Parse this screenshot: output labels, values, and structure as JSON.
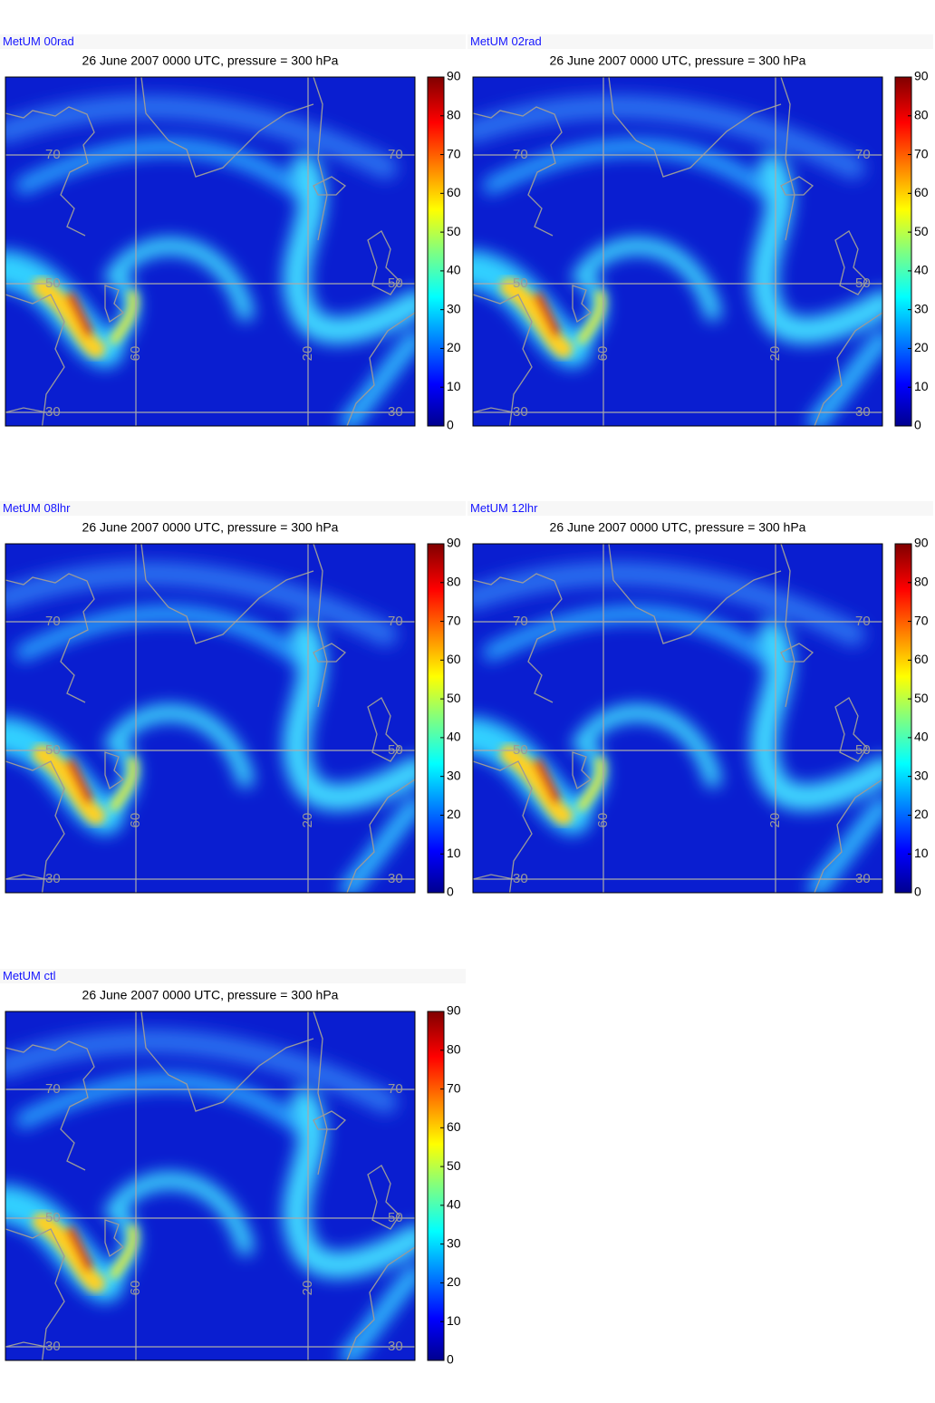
{
  "panels": [
    {
      "label": "MetUM 00rad",
      "title": "26 June 2007 0000 UTC, pressure = 300 hPa",
      "colorbar": {
        "lim": [
          0,
          90
        ],
        "ticks": [
          0,
          10,
          20,
          30,
          40,
          50,
          60,
          70,
          80,
          90
        ]
      },
      "latitudes": [
        70,
        50,
        30
      ],
      "longitudes": [
        60,
        20
      ]
    },
    {
      "label": "MetUM 02rad",
      "title": "26 June 2007 0000 UTC, pressure = 300 hPa",
      "colorbar": {
        "lim": [
          0,
          90
        ],
        "ticks": [
          0,
          10,
          20,
          30,
          40,
          50,
          60,
          70,
          80,
          90
        ]
      },
      "latitudes": [
        70,
        50,
        30
      ],
      "longitudes": [
        60,
        20
      ]
    },
    {
      "label": "MetUM 08lhr",
      "title": "26 June 2007 0000 UTC, pressure = 300 hPa",
      "colorbar": {
        "lim": [
          0,
          90
        ],
        "ticks": [
          0,
          10,
          20,
          30,
          40,
          50,
          60,
          70,
          80,
          90
        ]
      },
      "latitudes": [
        70,
        50,
        30
      ],
      "longitudes": [
        60,
        20
      ]
    },
    {
      "label": "MetUM 12lhr",
      "title": "26 June 2007 0000 UTC, pressure = 300 hPa",
      "colorbar": {
        "lim": [
          0,
          90
        ],
        "ticks": [
          0,
          10,
          20,
          30,
          40,
          50,
          60,
          70,
          80,
          90
        ]
      },
      "latitudes": [
        70,
        50,
        30
      ],
      "longitudes": [
        60,
        20
      ]
    },
    {
      "label": "MetUM ctl",
      "title": "26 June 2007 0000 UTC, pressure = 300 hPa",
      "colorbar": {
        "lim": [
          0,
          90
        ],
        "ticks": [
          0,
          10,
          20,
          30,
          40,
          50,
          60,
          70,
          80,
          90
        ]
      },
      "latitudes": [
        70,
        50,
        30
      ],
      "longitudes": [
        60,
        20
      ]
    }
  ]
}
